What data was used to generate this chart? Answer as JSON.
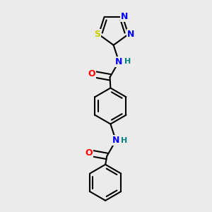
{
  "background_color": "#ebebeb",
  "bond_color": "#000000",
  "atom_colors": {
    "N": "#0000ff",
    "O": "#ff0000",
    "S": "#cccc00",
    "H": "#008080",
    "C": "#000000"
  },
  "bond_width": 1.5,
  "font_size_atoms": 9,
  "font_size_h": 8,
  "xlim": [
    -1.8,
    1.8
  ],
  "ylim": [
    -3.5,
    3.5
  ]
}
